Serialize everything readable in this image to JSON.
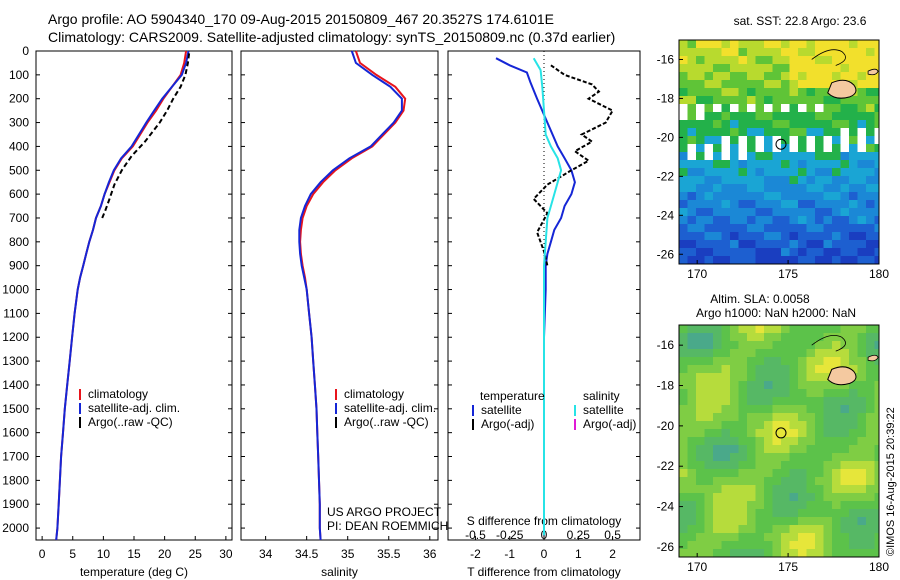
{
  "header": {
    "title_line1": "Argo profile: AO 5904340_170 09-Aug-2015 20150809_467 20.3527S 174.6101E",
    "title_line2": "Climatology: CARS2009. Satellite-adjusted climatology: synTS_20150809.nc (0.37d earlier)"
  },
  "colors": {
    "climatology": "#e8141c",
    "satellite": "#1526d6",
    "argo": "#000000",
    "sat_salinity": "#27e3e6",
    "argo_salinity_adj": "#e01ad6"
  },
  "chart_data": [
    {
      "type": "line",
      "xlabel": "temperature (deg C)",
      "ylabel": "",
      "xlim": [
        -1,
        31
      ],
      "ylim": [
        2050,
        0
      ],
      "xticks": [
        "0",
        "5",
        "10",
        "15",
        "20",
        "25",
        "30"
      ],
      "yticks": [
        "0",
        "100",
        "200",
        "300",
        "400",
        "500",
        "600",
        "700",
        "800",
        "900",
        "1000",
        "1100",
        "1200",
        "1300",
        "1400",
        "1500",
        "1600",
        "1700",
        "1800",
        "1900",
        "2000"
      ],
      "legend": [
        "climatology",
        "satellite-adj. clim.",
        "Argo(..raw -QC)"
      ],
      "legend_position": "bottom-right",
      "series": [
        {
          "name": "climatology",
          "x": [
            23.5,
            23.2,
            22.6,
            21.2,
            19.8,
            18.6,
            17.2,
            14.8,
            13.0,
            11.8,
            11.0,
            10.2,
            9.6,
            8.8,
            8.3,
            7.7,
            7.2,
            6.7,
            6.2,
            5.8,
            5.3,
            4.9,
            4.5,
            4.1,
            3.7,
            3.4,
            3.1,
            2.9,
            2.7,
            2.5,
            2.3
          ],
          "y": [
            0,
            50,
            100,
            150,
            200,
            250,
            300,
            400,
            450,
            500,
            550,
            600,
            650,
            700,
            750,
            800,
            850,
            900,
            950,
            1000,
            1100,
            1200,
            1300,
            1400,
            1500,
            1600,
            1700,
            1800,
            1900,
            2000,
            2050
          ]
        },
        {
          "name": "satellite-adj. clim.",
          "x": [
            23.9,
            23.5,
            22.8,
            21.2,
            19.6,
            18.3,
            17.0,
            14.6,
            12.9,
            11.7,
            10.9,
            10.2,
            9.6,
            8.8,
            8.3,
            7.7,
            7.2,
            6.7,
            6.2,
            5.8,
            5.3,
            4.9,
            4.5,
            4.1,
            3.7,
            3.4,
            3.1,
            2.9,
            2.7,
            2.5,
            2.3
          ],
          "y": [
            0,
            50,
            100,
            150,
            200,
            250,
            300,
            400,
            450,
            500,
            550,
            600,
            650,
            700,
            750,
            800,
            850,
            900,
            950,
            1000,
            1100,
            1200,
            1300,
            1400,
            1500,
            1600,
            1700,
            1800,
            1900,
            2000,
            2050
          ]
        },
        {
          "name": "Argo(..raw -QC)",
          "x": [
            24.0,
            23.8,
            23.4,
            22.6,
            21.4,
            20.4,
            19.2,
            16.8,
            14.6,
            13.0,
            11.8,
            11.0,
            10.3,
            9.8
          ],
          "y": [
            10,
            50,
            100,
            150,
            200,
            250,
            300,
            380,
            440,
            500,
            560,
            620,
            670,
            700
          ]
        }
      ]
    },
    {
      "type": "line",
      "xlabel": "salinity",
      "ylabel": "",
      "xlim": [
        33.7,
        36.1
      ],
      "ylim": [
        2050,
        0
      ],
      "xticks": [
        "34",
        "34.5",
        "35",
        "35.5",
        "36"
      ],
      "legend": [
        "climatology",
        "satellite-adj. clim.",
        "Argo(..raw -QC)"
      ],
      "legend_position": "bottom-right",
      "annotations": [
        "US ARGO PROJECT",
        "PI: DEAN ROEMMICH"
      ],
      "series": [
        {
          "name": "climatology",
          "x": [
            35.1,
            35.15,
            35.35,
            35.58,
            35.7,
            35.68,
            35.58,
            35.3,
            35.05,
            34.85,
            34.7,
            34.58,
            34.5,
            34.45,
            34.43,
            34.42,
            34.43,
            34.45,
            34.48,
            34.5,
            34.53,
            34.56,
            34.58,
            34.6,
            34.62,
            34.63,
            34.64,
            34.65,
            34.66,
            34.66,
            34.67
          ],
          "y": [
            0,
            50,
            100,
            150,
            200,
            250,
            300,
            400,
            450,
            500,
            550,
            600,
            650,
            700,
            750,
            800,
            850,
            900,
            950,
            1000,
            1100,
            1200,
            1300,
            1400,
            1500,
            1600,
            1700,
            1800,
            1900,
            2000,
            2050
          ]
        },
        {
          "name": "satellite-adj. clim.",
          "x": [
            35.05,
            35.1,
            35.3,
            35.52,
            35.66,
            35.66,
            35.56,
            35.28,
            35.02,
            34.82,
            34.67,
            34.55,
            34.48,
            34.43,
            34.41,
            34.41,
            34.42,
            34.44,
            34.47,
            34.5,
            34.53,
            34.56,
            34.58,
            34.6,
            34.62,
            34.63,
            34.64,
            34.65,
            34.66,
            34.66,
            34.67
          ],
          "y": [
            0,
            50,
            100,
            150,
            200,
            250,
            300,
            400,
            450,
            500,
            550,
            600,
            650,
            700,
            750,
            800,
            850,
            900,
            950,
            1000,
            1100,
            1200,
            1300,
            1400,
            1500,
            1600,
            1700,
            1800,
            1900,
            2000,
            2050
          ]
        }
      ]
    },
    {
      "type": "line",
      "xlabel": "T difference from climatology",
      "xlabel2": "S difference from climatology",
      "xlim": [
        -2.8,
        2.8
      ],
      "ylim": [
        2050,
        0
      ],
      "xticks": [
        "-2",
        "-1",
        "0",
        "1",
        "2"
      ],
      "xticks_s": [
        "-0.5",
        "-0.25",
        "0",
        "0.25",
        "0.5"
      ],
      "legend_temperature": {
        "header": "temperature",
        "items": [
          "satellite",
          "Argo(-adj)"
        ]
      },
      "legend_salinity": {
        "header": "salinity",
        "items": [
          "satellite",
          "Argo(-adj)"
        ]
      },
      "series": [
        {
          "name": "satellite",
          "x": [
            -1.4,
            -1.0,
            -0.5,
            -0.4,
            -0.2,
            0.1,
            0.4,
            0.6,
            0.8,
            0.9,
            0.8,
            0.6,
            0.5,
            0.3,
            0.2,
            0.1,
            0.05,
            0.05,
            0.0,
            0.0,
            0.0,
            0.0,
            0.0
          ],
          "y": [
            30,
            60,
            90,
            130,
            200,
            300,
            400,
            450,
            500,
            550,
            600,
            650,
            700,
            750,
            800,
            850,
            900,
            1000,
            1200,
            1400,
            1600,
            1800,
            2030
          ]
        },
        {
          "name": "Argo(-adj)",
          "x": [
            0.2,
            0.6,
            1.4,
            1.6,
            1.3,
            2.0,
            1.8,
            1.1,
            1.4,
            0.9,
            1.3,
            0.8,
            0.1,
            -0.3,
            0.1,
            -0.2,
            0.0,
            0.1
          ],
          "y": [
            60,
            100,
            140,
            170,
            200,
            250,
            300,
            350,
            380,
            420,
            460,
            500,
            560,
            620,
            680,
            760,
            840,
            900
          ]
        },
        {
          "name": "salinity satellite",
          "x": [
            -0.3,
            -0.1,
            -0.05,
            0.0,
            0.05,
            0.2,
            0.4,
            0.5,
            0.4,
            0.3,
            0.2,
            0.1,
            0.05,
            0.0,
            0.0,
            0.0,
            0.0
          ],
          "y": [
            30,
            80,
            150,
            250,
            350,
            400,
            450,
            500,
            550,
            600,
            650,
            700,
            800,
            900,
            1200,
            1600,
            2030
          ]
        }
      ]
    },
    {
      "type": "heatmap",
      "title": "sat. SST: 22.8 Argo: 23.6",
      "xlim": [
        169,
        180
      ],
      "ylim": [
        -26.5,
        -15
      ],
      "xticks": [
        "170",
        "175",
        "180"
      ],
      "yticks": [
        "-16",
        "-18",
        "-20",
        "-22",
        "-24",
        "-26"
      ],
      "marker": {
        "lon": 174.61,
        "lat": -20.35
      }
    },
    {
      "type": "heatmap",
      "title": "Altim. SLA: 0.0058",
      "subtitle": "Argo h1000: NaN h2000: NaN",
      "xlim": [
        169,
        180
      ],
      "ylim": [
        -26.5,
        -15
      ],
      "xticks": [
        "170",
        "175",
        "180"
      ],
      "yticks": [
        "-16",
        "-18",
        "-20",
        "-22",
        "-24",
        "-26"
      ],
      "marker": {
        "lon": 174.61,
        "lat": -20.35
      }
    }
  ],
  "credit": "©IMOS 16-Aug-2015 20:39:22"
}
